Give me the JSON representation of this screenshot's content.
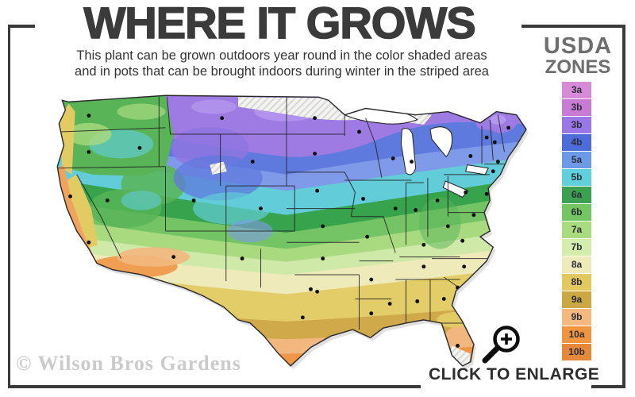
{
  "header": {
    "title": "WHERE IT GROWS",
    "subtitle_line1": "This plant can be grown outdoors year round in the color shaded areas",
    "subtitle_line2": "and in pots that can be brought indoors during winter in the striped area"
  },
  "legend": {
    "title_line1": "USDA",
    "title_line2": "ZONES",
    "zones": [
      {
        "label": "3a",
        "color": "#d68ad8"
      },
      {
        "label": "3b",
        "color": "#c77bd3"
      },
      {
        "label": "3b",
        "color": "#9b76e8"
      },
      {
        "label": "4b",
        "color": "#4d6cd9"
      },
      {
        "label": "5a",
        "color": "#6d9ae6"
      },
      {
        "label": "5b",
        "color": "#5fd0dc"
      },
      {
        "label": "6a",
        "color": "#3ba04f"
      },
      {
        "label": "6b",
        "color": "#72c763"
      },
      {
        "label": "7a",
        "color": "#a8dc7e"
      },
      {
        "label": "7b",
        "color": "#d4edad"
      },
      {
        "label": "8a",
        "color": "#efeab9"
      },
      {
        "label": "8b",
        "color": "#e2c95f"
      },
      {
        "label": "9a",
        "color": "#cba841"
      },
      {
        "label": "9b",
        "color": "#f4b97f"
      },
      {
        "label": "10a",
        "color": "#f09440"
      },
      {
        "label": "10b",
        "color": "#e4893a"
      }
    ]
  },
  "footer": {
    "watermark": "© Wilson Bros Gardens",
    "enlarge_label": "CLICK TO ENLARGE"
  }
}
